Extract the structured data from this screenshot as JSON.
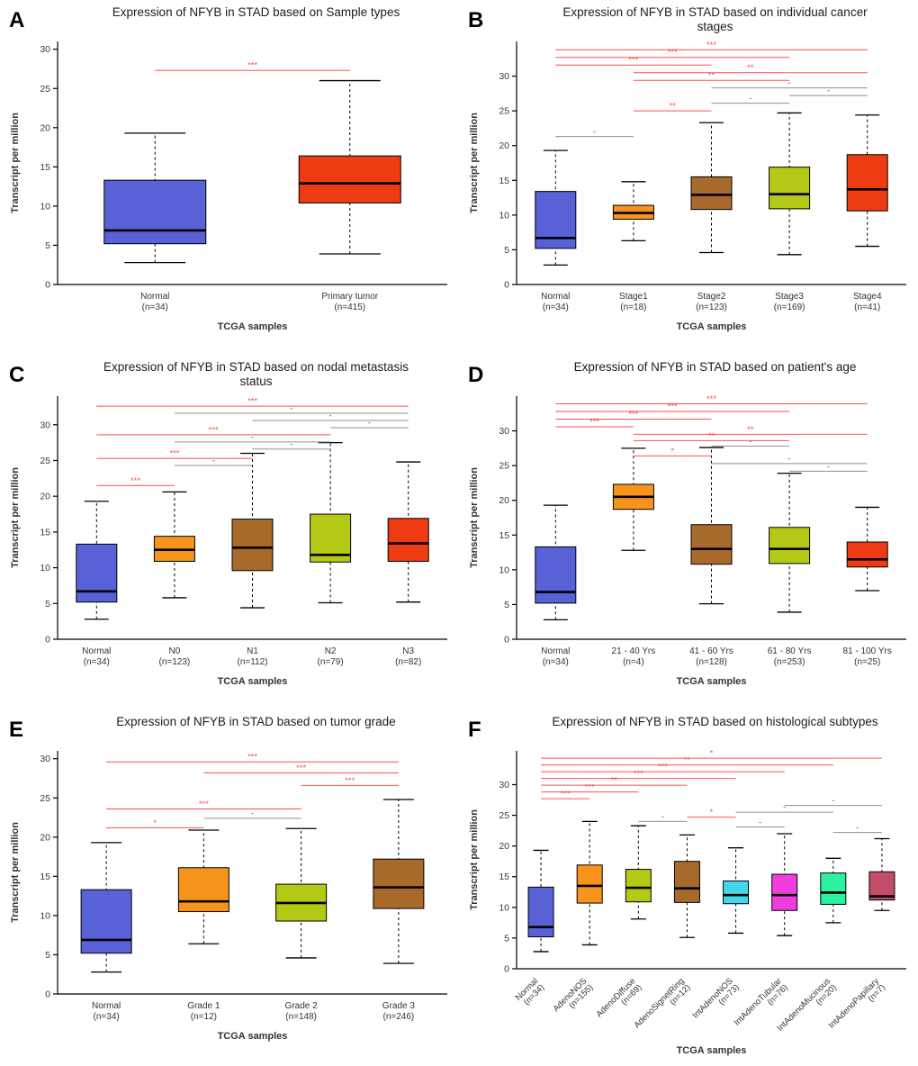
{
  "figure": {
    "panels": [
      "A",
      "B",
      "C",
      "D",
      "E",
      "F"
    ]
  },
  "colors": {
    "significant": "#fa5252",
    "not_significant": "#8f8f8f",
    "ns_label": "#555555",
    "axis": "#000000",
    "box_border": "#000000",
    "title": "#1c1c1c",
    "tick": "#3a3a3a",
    "label": "#333333"
  },
  "chart_data": [
    {
      "type": "box",
      "panel_label": "A",
      "title_lines": [
        "Expression of NFYB in STAD based on Sample types"
      ],
      "xlabel": "TCGA samples",
      "ylabel": "Transcript per million",
      "yticks": [
        0,
        5,
        10,
        15,
        20,
        25,
        30
      ],
      "ylim": [
        0,
        31
      ],
      "rotate_category_labels": false,
      "groups": [
        {
          "name": "Normal",
          "count_label": "(n=34)",
          "color": "#5861d6",
          "whisker_low": 2.8,
          "q1": 5.2,
          "median": 6.9,
          "q3": 13.3,
          "whisker_high": 19.3
        },
        {
          "name": "Primary tumor",
          "count_label": "(n=415)",
          "color": "#ee3b12",
          "whisker_low": 3.9,
          "q1": 10.4,
          "median": 12.9,
          "q3": 16.4,
          "whisker_high": 26.0
        }
      ],
      "significance": [
        {
          "a": 0,
          "b": 1,
          "label": "***",
          "level": "sig",
          "y": 27.3
        }
      ]
    },
    {
      "type": "box",
      "panel_label": "B",
      "title_lines": [
        "Expression of NFYB in STAD based on individual cancer",
        "stages"
      ],
      "xlabel": "TCGA samples",
      "ylabel": "Transcript per million",
      "yticks": [
        0,
        5,
        10,
        15,
        20,
        25,
        30
      ],
      "ylim": [
        0,
        35
      ],
      "rotate_category_labels": false,
      "groups": [
        {
          "name": "Normal",
          "count_label": "(n=34)",
          "color": "#5861d6",
          "whisker_low": 2.8,
          "q1": 5.2,
          "median": 6.7,
          "q3": 13.4,
          "whisker_high": 19.3
        },
        {
          "name": "Stage1",
          "count_label": "(n=18)",
          "color": "#f7941e",
          "whisker_low": 6.3,
          "q1": 9.4,
          "median": 10.3,
          "q3": 11.4,
          "whisker_high": 14.8
        },
        {
          "name": "Stage2",
          "count_label": "(n=123)",
          "color": "#a86a2b",
          "whisker_low": 4.6,
          "q1": 10.8,
          "median": 12.9,
          "q3": 15.5,
          "whisker_high": 23.3
        },
        {
          "name": "Stage3",
          "count_label": "(n=169)",
          "color": "#b3c916",
          "whisker_low": 4.3,
          "q1": 10.9,
          "median": 13.0,
          "q3": 16.9,
          "whisker_high": 24.7
        },
        {
          "name": "Stage4",
          "count_label": "(n=41)",
          "color": "#ee3b12",
          "whisker_low": 5.5,
          "q1": 10.6,
          "median": 13.7,
          "q3": 18.7,
          "whisker_high": 24.4
        }
      ],
      "significance": [
        {
          "a": 0,
          "b": 4,
          "label": "***",
          "level": "sig",
          "y": 33.8
        },
        {
          "a": 0,
          "b": 3,
          "label": "***",
          "level": "sig",
          "y": 32.7
        },
        {
          "a": 0,
          "b": 2,
          "label": "***",
          "level": "sig",
          "y": 31.6
        },
        {
          "a": 1,
          "b": 4,
          "label": "**",
          "level": "sig",
          "y": 30.5
        },
        {
          "a": 1,
          "b": 3,
          "label": "**",
          "level": "sig",
          "y": 29.4
        },
        {
          "a": 2,
          "b": 4,
          "label": "-",
          "level": "ns",
          "y": 28.3
        },
        {
          "a": 3,
          "b": 4,
          "label": "-",
          "level": "ns",
          "y": 27.2
        },
        {
          "a": 2,
          "b": 3,
          "label": "-",
          "level": "ns",
          "y": 26.1
        },
        {
          "a": 1,
          "b": 2,
          "label": "**",
          "level": "sig",
          "y": 25.0
        },
        {
          "a": 0,
          "b": 1,
          "label": "-",
          "level": "ns",
          "y": 21.3
        }
      ]
    },
    {
      "type": "box",
      "panel_label": "C",
      "title_lines": [
        "Expression of NFYB in STAD based on nodal metastasis",
        "status"
      ],
      "xlabel": "TCGA samples",
      "ylabel": "Transcript per million",
      "yticks": [
        0,
        5,
        10,
        15,
        20,
        25,
        30
      ],
      "ylim": [
        0,
        34
      ],
      "rotate_category_labels": false,
      "groups": [
        {
          "name": "Normal",
          "count_label": "(n=34)",
          "color": "#5861d6",
          "whisker_low": 2.8,
          "q1": 5.2,
          "median": 6.7,
          "q3": 13.3,
          "whisker_high": 19.3
        },
        {
          "name": "N0",
          "count_label": "(n=123)",
          "color": "#f7941e",
          "whisker_low": 5.8,
          "q1": 10.9,
          "median": 12.5,
          "q3": 14.4,
          "whisker_high": 20.6
        },
        {
          "name": "N1",
          "count_label": "(n=112)",
          "color": "#a86a2b",
          "whisker_low": 4.4,
          "q1": 9.6,
          "median": 12.8,
          "q3": 16.8,
          "whisker_high": 26.0
        },
        {
          "name": "N2",
          "count_label": "(n=79)",
          "color": "#b3c916",
          "whisker_low": 5.1,
          "q1": 10.8,
          "median": 11.8,
          "q3": 17.5,
          "whisker_high": 27.5
        },
        {
          "name": "N3",
          "count_label": "(n=82)",
          "color": "#ee3b12",
          "whisker_low": 5.2,
          "q1": 10.9,
          "median": 13.4,
          "q3": 16.9,
          "whisker_high": 24.8
        }
      ],
      "significance": [
        {
          "a": 0,
          "b": 4,
          "label": "***",
          "level": "sig",
          "y": 32.6
        },
        {
          "a": 1,
          "b": 4,
          "label": "-",
          "level": "ns",
          "y": 31.6
        },
        {
          "a": 2,
          "b": 4,
          "label": "-",
          "level": "ns",
          "y": 30.6
        },
        {
          "a": 3,
          "b": 4,
          "label": "-",
          "level": "ns",
          "y": 29.6
        },
        {
          "a": 0,
          "b": 3,
          "label": "***",
          "level": "sig",
          "y": 28.6
        },
        {
          "a": 1,
          "b": 3,
          "label": "-",
          "level": "ns",
          "y": 27.6
        },
        {
          "a": 2,
          "b": 3,
          "label": "-",
          "level": "ns",
          "y": 26.6
        },
        {
          "a": 0,
          "b": 2,
          "label": "***",
          "level": "sig",
          "y": 25.3
        },
        {
          "a": 1,
          "b": 2,
          "label": "-",
          "level": "ns",
          "y": 24.3
        },
        {
          "a": 0,
          "b": 1,
          "label": "***",
          "level": "sig",
          "y": 21.5
        }
      ]
    },
    {
      "type": "box",
      "panel_label": "D",
      "title_lines": [
        "Expression of NFYB in STAD based on patient's age"
      ],
      "xlabel": "TCGA samples",
      "ylabel": "Transcript per million",
      "yticks": [
        0,
        5,
        10,
        15,
        20,
        25,
        30
      ],
      "ylim": [
        0,
        35
      ],
      "rotate_category_labels": false,
      "groups": [
        {
          "name": "Normal",
          "count_label": "(n=34)",
          "color": "#5861d6",
          "whisker_low": 2.8,
          "q1": 5.2,
          "median": 6.8,
          "q3": 13.3,
          "whisker_high": 19.3
        },
        {
          "name": "21 - 40 Yrs",
          "count_label": "(n=4)",
          "color": "#f7941e",
          "whisker_low": 12.8,
          "q1": 18.7,
          "median": 20.5,
          "q3": 22.3,
          "whisker_high": 27.5
        },
        {
          "name": "41 - 60 Yrs",
          "count_label": "(n=128)",
          "color": "#a86a2b",
          "whisker_low": 5.1,
          "q1": 10.8,
          "median": 13.0,
          "q3": 16.5,
          "whisker_high": 27.6
        },
        {
          "name": "61 - 80 Yrs",
          "count_label": "(n=253)",
          "color": "#b3c916",
          "whisker_low": 3.9,
          "q1": 10.9,
          "median": 13.0,
          "q3": 16.1,
          "whisker_high": 23.9
        },
        {
          "name": "81 - 100 Yrs",
          "count_label": "(n=25)",
          "color": "#ee3b12",
          "whisker_low": 7.0,
          "q1": 10.4,
          "median": 11.5,
          "q3": 14.0,
          "whisker_high": 19.0
        }
      ],
      "significance": [
        {
          "a": 0,
          "b": 4,
          "label": "***",
          "level": "sig",
          "y": 33.9
        },
        {
          "a": 0,
          "b": 3,
          "label": "***",
          "level": "sig",
          "y": 32.8
        },
        {
          "a": 0,
          "b": 2,
          "label": "***",
          "level": "sig",
          "y": 31.7
        },
        {
          "a": 0,
          "b": 1,
          "label": "***",
          "level": "sig",
          "y": 30.6
        },
        {
          "a": 1,
          "b": 4,
          "label": "**",
          "level": "sig",
          "y": 29.5
        },
        {
          "a": 1,
          "b": 3,
          "label": "**",
          "level": "sig",
          "y": 28.6
        },
        {
          "a": 2,
          "b": 3,
          "label": "-",
          "level": "ns",
          "y": 27.8
        },
        {
          "a": 1,
          "b": 2,
          "label": "*",
          "level": "sig",
          "y": 26.4
        },
        {
          "a": 2,
          "b": 4,
          "label": "-",
          "level": "ns",
          "y": 25.3
        },
        {
          "a": 3,
          "b": 4,
          "label": "-",
          "level": "ns",
          "y": 24.2
        }
      ]
    },
    {
      "type": "box",
      "panel_label": "E",
      "title_lines": [
        "Expression of NFYB in STAD based on tumor grade"
      ],
      "xlabel": "TCGA samples",
      "ylabel": "Transcript per million",
      "yticks": [
        0,
        5,
        10,
        15,
        20,
        25,
        30
      ],
      "ylim": [
        0,
        31
      ],
      "rotate_category_labels": false,
      "groups": [
        {
          "name": "Normal",
          "count_label": "(n=34)",
          "color": "#5861d6",
          "whisker_low": 2.8,
          "q1": 5.2,
          "median": 6.9,
          "q3": 13.3,
          "whisker_high": 19.3
        },
        {
          "name": "Grade 1",
          "count_label": "(n=12)",
          "color": "#f7941e",
          "whisker_low": 6.4,
          "q1": 10.5,
          "median": 11.8,
          "q3": 16.1,
          "whisker_high": 20.9
        },
        {
          "name": "Grade 2",
          "count_label": "(n=148)",
          "color": "#b3c916",
          "whisker_low": 4.6,
          "q1": 9.3,
          "median": 11.6,
          "q3": 14.0,
          "whisker_high": 21.1
        },
        {
          "name": "Grade 3",
          "count_label": "(n=246)",
          "color": "#a86a2b",
          "whisker_low": 3.9,
          "q1": 10.9,
          "median": 13.6,
          "q3": 17.2,
          "whisker_high": 24.8
        }
      ],
      "significance": [
        {
          "a": 0,
          "b": 3,
          "label": "***",
          "level": "sig",
          "y": 29.6
        },
        {
          "a": 1,
          "b": 3,
          "label": "***",
          "level": "sig",
          "y": 28.2
        },
        {
          "a": 2,
          "b": 3,
          "label": "***",
          "level": "sig",
          "y": 26.6
        },
        {
          "a": 0,
          "b": 2,
          "label": "***",
          "level": "sig",
          "y": 23.6
        },
        {
          "a": 1,
          "b": 2,
          "label": "-",
          "level": "ns",
          "y": 22.4
        },
        {
          "a": 0,
          "b": 1,
          "label": "*",
          "level": "sig",
          "y": 21.2
        }
      ]
    },
    {
      "type": "box",
      "panel_label": "F",
      "title_lines": [
        "Expression of NFYB in STAD based on histological subtypes"
      ],
      "xlabel": "TCGA samples",
      "ylabel": "Transcript per million",
      "yticks": [
        0,
        5,
        10,
        15,
        20,
        25,
        30
      ],
      "ylim": [
        0,
        35.5
      ],
      "rotate_category_labels": true,
      "groups": [
        {
          "name": "Normal",
          "count_label": "(n=34)",
          "color": "#5861d6",
          "whisker_low": 2.8,
          "q1": 5.2,
          "median": 6.8,
          "q3": 13.3,
          "whisker_high": 19.3
        },
        {
          "name": "AdenoNOS",
          "count_label": "(n=155)",
          "color": "#f7941e",
          "whisker_low": 3.9,
          "q1": 10.7,
          "median": 13.5,
          "q3": 16.9,
          "whisker_high": 24.0
        },
        {
          "name": "AdenoDiffuse",
          "count_label": "(n=69)",
          "color": "#b3c916",
          "whisker_low": 8.1,
          "q1": 10.9,
          "median": 13.2,
          "q3": 16.2,
          "whisker_high": 23.3
        },
        {
          "name": "AdenoSignetRing",
          "count_label": "(n=12)",
          "color": "#a86a2b",
          "whisker_low": 5.1,
          "q1": 10.8,
          "median": 13.1,
          "q3": 17.5,
          "whisker_high": 21.8
        },
        {
          "name": "IntAdenoNOS",
          "count_label": "(n=73)",
          "color": "#43d7e8",
          "whisker_low": 5.8,
          "q1": 10.6,
          "median": 12.0,
          "q3": 14.3,
          "whisker_high": 19.7
        },
        {
          "name": "IntAdenoTubular",
          "count_label": "(n=76)",
          "color": "#ef3ddf",
          "whisker_low": 5.4,
          "q1": 9.5,
          "median": 12.0,
          "q3": 15.4,
          "whisker_high": 22.0
        },
        {
          "name": "IntAdenoMucinous",
          "count_label": "(n=20)",
          "color": "#2cf19e",
          "whisker_low": 7.5,
          "q1": 10.5,
          "median": 12.4,
          "q3": 15.6,
          "whisker_high": 18.0
        },
        {
          "name": "IntAdenoPapillary",
          "count_label": "(n=7)",
          "color": "#c14e68",
          "whisker_low": 9.5,
          "q1": 11.2,
          "median": 11.8,
          "q3": 15.8,
          "whisker_high": 21.2
        }
      ],
      "significance": [
        {
          "a": 0,
          "b": 7,
          "label": "*",
          "level": "sig",
          "y": 34.3
        },
        {
          "a": 0,
          "b": 6,
          "label": "**",
          "level": "sig",
          "y": 33.2
        },
        {
          "a": 0,
          "b": 5,
          "label": "***",
          "level": "sig",
          "y": 32.1
        },
        {
          "a": 0,
          "b": 4,
          "label": "***",
          "level": "sig",
          "y": 31.0
        },
        {
          "a": 0,
          "b": 3,
          "label": "**",
          "level": "sig",
          "y": 29.9
        },
        {
          "a": 0,
          "b": 2,
          "label": "***",
          "level": "sig",
          "y": 28.8
        },
        {
          "a": 0,
          "b": 1,
          "label": "***",
          "level": "sig",
          "y": 27.7
        },
        {
          "a": 5,
          "b": 7,
          "label": "-",
          "level": "ns",
          "y": 26.6
        },
        {
          "a": 4,
          "b": 6,
          "label": "-",
          "level": "ns",
          "y": 25.5
        },
        {
          "a": 3,
          "b": 4,
          "label": "*",
          "level": "sig",
          "y": 24.7
        },
        {
          "a": 2,
          "b": 3,
          "label": "-",
          "level": "ns",
          "y": 24.0
        },
        {
          "a": 4,
          "b": 5,
          "label": "-",
          "level": "ns",
          "y": 23.1
        },
        {
          "a": 6,
          "b": 7,
          "label": "-",
          "level": "ns",
          "y": 22.2
        }
      ]
    }
  ]
}
